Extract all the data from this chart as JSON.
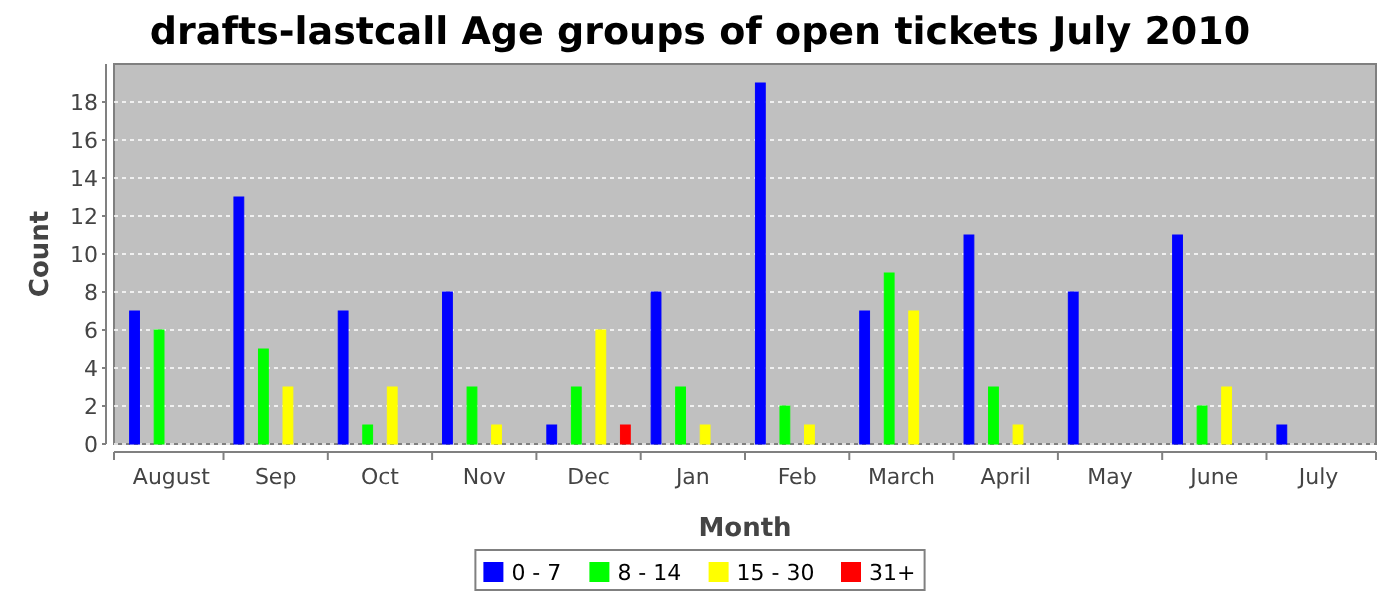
{
  "chart_data": {
    "type": "bar",
    "title": "drafts-lastcall Age groups of open tickets July 2010",
    "xlabel": "Month",
    "ylabel": "Count",
    "categories": [
      "August",
      "Sep",
      "Oct",
      "Nov",
      "Dec",
      "Jan",
      "Feb",
      "March",
      "April",
      "May",
      "June",
      "July"
    ],
    "series": [
      {
        "name": "0 - 7",
        "color": "#0000ff",
        "values": [
          7,
          13,
          7,
          8,
          1,
          8,
          19,
          7,
          11,
          8,
          11,
          1
        ]
      },
      {
        "name": "8 - 14",
        "color": "#00ff00",
        "values": [
          6,
          5,
          1,
          3,
          3,
          3,
          2,
          9,
          3,
          0,
          2,
          0
        ]
      },
      {
        "name": "15 - 30",
        "color": "#ffff00",
        "values": [
          0,
          3,
          3,
          1,
          6,
          1,
          1,
          7,
          1,
          0,
          3,
          0
        ]
      },
      {
        "name": "31+",
        "color": "#ff0000",
        "values": [
          0,
          0,
          0,
          0,
          1,
          0,
          0,
          0,
          0,
          0,
          0,
          0
        ]
      }
    ],
    "ylim": [
      0,
      20
    ],
    "yticks": [
      0,
      2,
      4,
      6,
      8,
      10,
      12,
      14,
      16,
      18
    ],
    "grid": "y",
    "legend": "bottom"
  }
}
